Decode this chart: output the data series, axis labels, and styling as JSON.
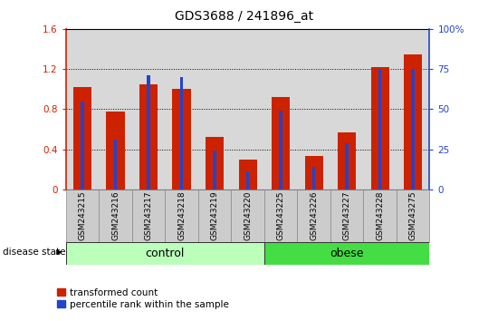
{
  "title": "GDS3688 / 241896_at",
  "samples": [
    "GSM243215",
    "GSM243216",
    "GSM243217",
    "GSM243218",
    "GSM243219",
    "GSM243220",
    "GSM243225",
    "GSM243226",
    "GSM243227",
    "GSM243228",
    "GSM243275"
  ],
  "transformed_count": [
    1.02,
    0.78,
    1.05,
    1.0,
    0.52,
    0.3,
    0.92,
    0.33,
    0.57,
    1.22,
    1.35
  ],
  "percentile_rank_pct": [
    55,
    31,
    71,
    70,
    24,
    11,
    49,
    14,
    29,
    75,
    75
  ],
  "bar_color_red": "#cc2200",
  "bar_color_blue": "#2244cc",
  "ylim_left": [
    0,
    1.6
  ],
  "ylim_right": [
    0,
    100
  ],
  "yticks_left": [
    0,
    0.4,
    0.8,
    1.2,
    1.6
  ],
  "yticks_right": [
    0,
    25,
    50,
    75,
    100
  ],
  "ytick_labels_left": [
    "0",
    "0.4",
    "0.8",
    "1.2",
    "1.6"
  ],
  "ytick_labels_right": [
    "0",
    "25",
    "50",
    "75",
    "100%"
  ],
  "background_plot": "#d8d8d8",
  "control_color": "#bbffbb",
  "obese_color": "#44dd44",
  "control_count": 6,
  "obese_count": 5,
  "legend_red": "transformed count",
  "legend_blue": "percentile rank within the sample",
  "disease_state_label": "disease state"
}
